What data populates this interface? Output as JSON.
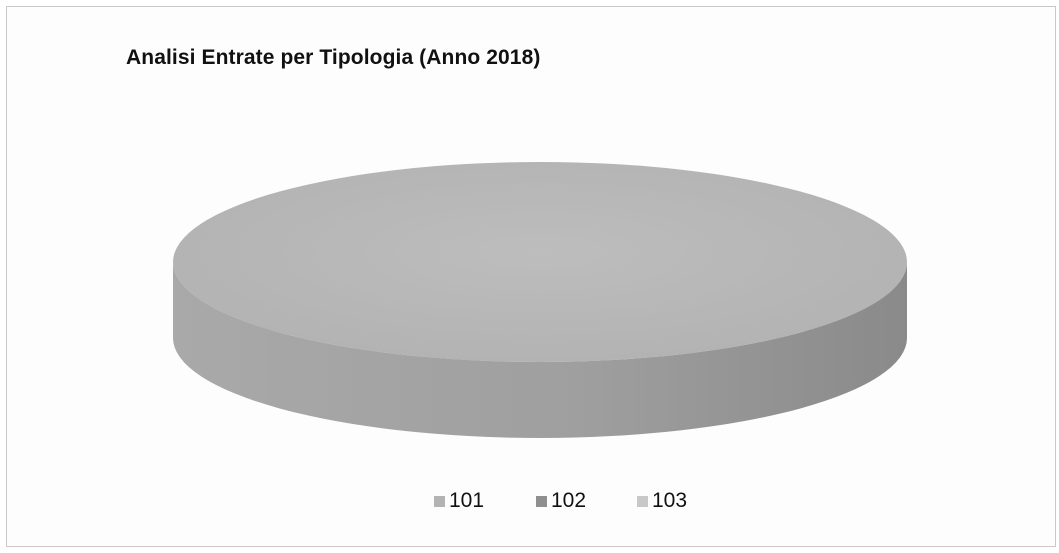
{
  "chart_data": {
    "type": "pie",
    "title": "Analisi Entrate per Tipologia (Anno 2018)",
    "categories": [
      "101",
      "102",
      "103"
    ],
    "values": [
      100,
      0,
      0
    ],
    "legend_position": "bottom",
    "style": "3d",
    "colors": {
      "101": "#b3b3b3",
      "102": "#8f8f8f",
      "103": "#c8c8c8"
    }
  }
}
